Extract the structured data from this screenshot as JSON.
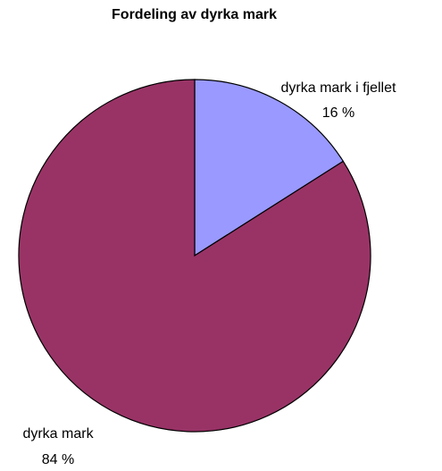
{
  "chart_data": {
    "type": "pie",
    "title": "Fordeling av dyrka mark",
    "slices": [
      {
        "label": "dyrka mark i fjellet",
        "value": 16,
        "value_label": "16 %",
        "color": "#9999ff"
      },
      {
        "label": "dyrka mark",
        "value": 84,
        "value_label": "84 %",
        "color": "#993366"
      }
    ],
    "start_angle": "12 o'clock",
    "direction": "clockwise",
    "legend": "none"
  }
}
